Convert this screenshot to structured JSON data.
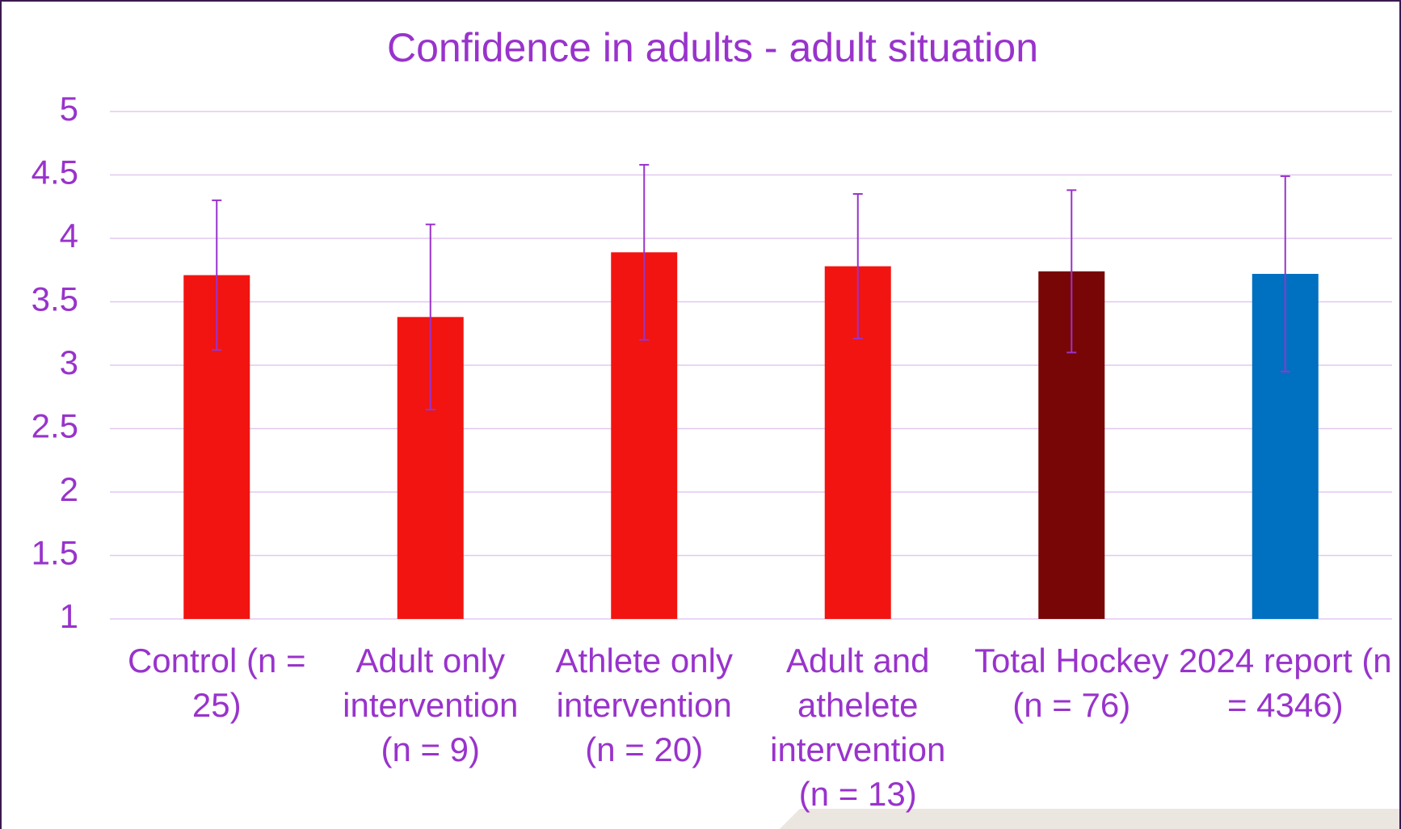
{
  "chart_data": {
    "type": "bar",
    "title": "Confidence in adults - adult situation",
    "categories": [
      "Control (n = 25)",
      "Adult only intervention (n = 9)",
      "Athlete only intervention (n = 20)",
      "Adult and athelete intervention (n = 13)",
      "Total Hockey (n = 76)",
      "2024 report (n = 4346)"
    ],
    "values": [
      3.71,
      3.38,
      3.89,
      3.78,
      3.74,
      3.72
    ],
    "errors": [
      0.59,
      0.73,
      0.69,
      0.57,
      0.64,
      0.77
    ],
    "colors": [
      "#f21410",
      "#f21410",
      "#f21410",
      "#f21410",
      "#780606",
      "#0070c0"
    ],
    "error_color": "#9933cc",
    "ylim": [
      1,
      5
    ],
    "yticks": [
      1,
      1.5,
      2,
      2.5,
      3,
      3.5,
      4,
      4.5,
      5
    ],
    "grid": true
  }
}
